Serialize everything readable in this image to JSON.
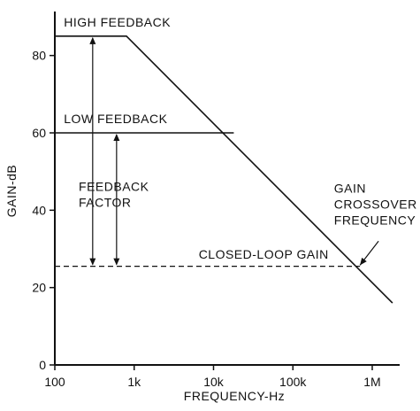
{
  "chart_data": {
    "type": "line",
    "xlabel": "FREQUENCY-Hz",
    "ylabel": "GAIN-dB",
    "x_scale": "log",
    "xlim": [
      100,
      2000000
    ],
    "ylim": [
      0,
      90
    ],
    "x_ticks": [
      {
        "value": 100,
        "label": "100"
      },
      {
        "value": 1000,
        "label": "1k"
      },
      {
        "value": 10000,
        "label": "10k"
      },
      {
        "value": 100000,
        "label": "100k"
      },
      {
        "value": 1000000,
        "label": "1M"
      }
    ],
    "y_ticks": [
      {
        "value": 0,
        "label": "0"
      },
      {
        "value": 20,
        "label": "20"
      },
      {
        "value": 40,
        "label": "40"
      },
      {
        "value": 60,
        "label": "60"
      },
      {
        "value": 80,
        "label": "80"
      }
    ],
    "grid": false,
    "series": [
      {
        "style": "solid",
        "points": [
          {
            "x": 100,
            "y": 85
          },
          {
            "x": 800,
            "y": 85
          },
          {
            "x": 1800000,
            "y": 16
          }
        ]
      },
      {
        "style": "solid",
        "points": [
          {
            "x": 100,
            "y": 60
          },
          {
            "x": 18000,
            "y": 60
          }
        ]
      },
      {
        "style": "dashed",
        "points": [
          {
            "x": 100,
            "y": 25.5
          },
          {
            "x": 700000,
            "y": 25.5
          }
        ]
      }
    ],
    "arrows": [
      {
        "x": 300,
        "y_from": 85,
        "y_to": 25.5
      },
      {
        "x": 600,
        "y_from": 60,
        "y_to": 25.5
      }
    ],
    "pointer": {
      "from": {
        "x": 1200000,
        "y": 32
      },
      "to": {
        "x": 700000,
        "y": 25.8
      }
    },
    "annotations": {
      "high_feedback": {
        "text": "HIGH FEEDBACK",
        "x": 130,
        "y": 87.5
      },
      "low_feedback": {
        "text": "LOW FEEDBACK",
        "x": 130,
        "y": 62.5
      },
      "feedback_factor": {
        "lines": [
          "FEEDBACK",
          "FACTOR"
        ],
        "x": 200,
        "y": 45
      },
      "closed_loop_gain": {
        "text": "CLOSED-LOOP GAIN",
        "x": 6500,
        "y": 27.5
      },
      "gain_crossover": {
        "lines": [
          "GAIN",
          "CROSSOVER",
          "FREQUENCY"
        ],
        "x": 330000,
        "y": 44.5
      }
    }
  }
}
